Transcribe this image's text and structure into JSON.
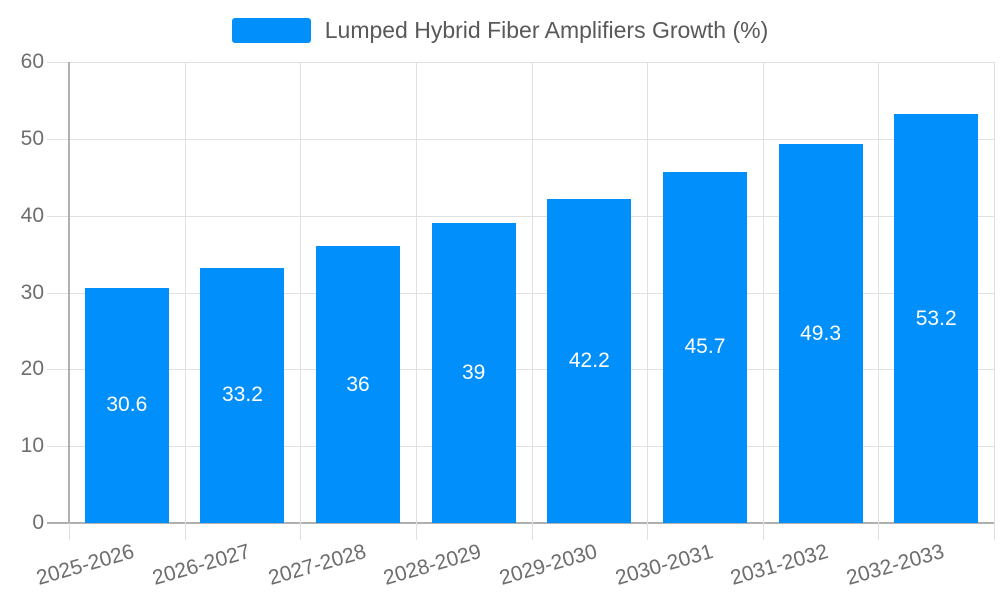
{
  "chart_data": {
    "type": "bar",
    "title": "Lumped Hybrid Fiber Amplifiers Growth (%)",
    "categories": [
      "2025-2026",
      "2026-2027",
      "2027-2028",
      "2028-2029",
      "2029-2030",
      "2030-2031",
      "2031-2032",
      "2032-2033"
    ],
    "values": [
      30.6,
      33.2,
      36,
      39,
      42.2,
      45.7,
      49.3,
      53.2
    ],
    "yticks": [
      0,
      10,
      20,
      30,
      40,
      50,
      60
    ],
    "ylim": [
      0,
      60
    ],
    "grid": true,
    "legend_position": "top",
    "colors": {
      "bar": "#008FFB",
      "value_label": "#ffffff",
      "grid_line": "#e0e0e0",
      "axis_line": "#b0b0b0",
      "tick_line": "#e0e0e0",
      "axis_label": "#6e6e6e",
      "legend_text": "#58595b"
    }
  }
}
